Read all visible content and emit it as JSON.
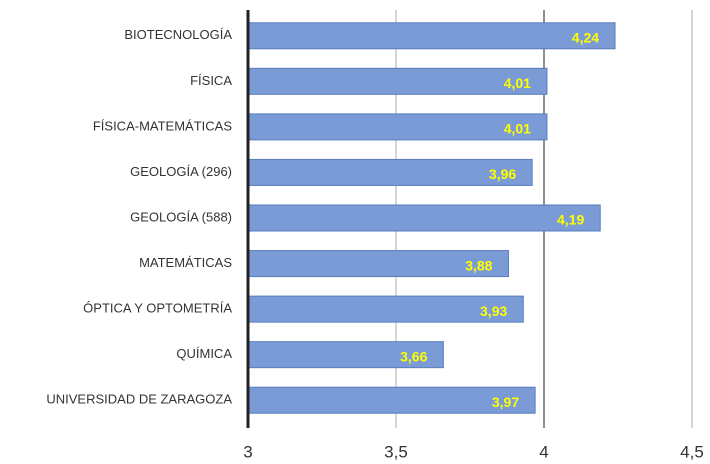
{
  "chart_data": {
    "type": "bar",
    "orientation": "horizontal",
    "categories": [
      "BIOTECNOLOGÍA",
      "FÍSICA",
      "FÍSICA-MATEMÁTICAS",
      "GEOLOGÍA (296)",
      "GEOLOGÍA (588)",
      "MATEMÁTICAS",
      "ÓPTICA Y OPTOMETRÍA",
      "QUÍMICA",
      "UNIVERSIDAD DE ZARAGOZA"
    ],
    "values": [
      4.24,
      4.01,
      4.01,
      3.96,
      4.19,
      3.88,
      3.93,
      3.66,
      3.97
    ],
    "value_labels": [
      "4,24",
      "4,01",
      "4,01",
      "3,96",
      "4,19",
      "3,88",
      "3,93",
      "3,66",
      "3,97"
    ],
    "color": "#7b9bd6",
    "xlim": [
      3,
      4.5
    ],
    "xticks": [
      3,
      {
        "value": 3.5,
        "label": "3,5"
      },
      4,
      {
        "value": 4.5,
        "label": "4,5"
      }
    ],
    "grid": true
  }
}
